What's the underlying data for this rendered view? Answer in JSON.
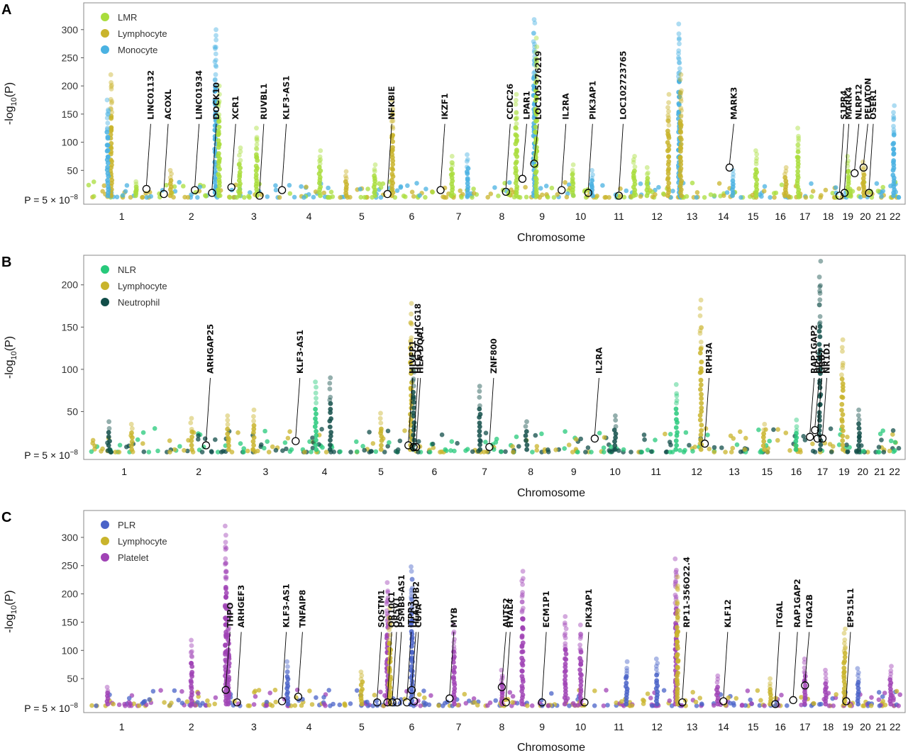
{
  "chart_data": [
    {
      "type": "scatter",
      "panel": "A",
      "ylabel_prefix": "-log",
      "ylabel_sub": "10",
      "ylabel_suffix": "(P)",
      "xlabel": "Chromosome",
      "threshold_label": "P = 5 × 10",
      "threshold_exp": "−8",
      "ylim": [
        0,
        340
      ],
      "yticks": [
        50,
        100,
        150,
        200,
        250,
        300
      ],
      "chromosomes": [
        "1",
        "2",
        "3",
        "4",
        "5",
        "6",
        "7",
        "8",
        "9",
        "10",
        "11",
        "12",
        "13",
        "14",
        "15",
        "16",
        "17",
        "18",
        "19",
        "20",
        "21",
        "22"
      ],
      "series": [
        {
          "name": "LMR",
          "color": "#a9dd3c"
        },
        {
          "name": "Lymphocyte",
          "color": "#c9b42c"
        },
        {
          "name": "Monocyte",
          "color": "#4ab2e2"
        }
      ],
      "peaks": [
        {
          "chr": "1",
          "pos": 0.35,
          "value": 220,
          "series": 1
        },
        {
          "chr": "1",
          "pos": 0.3,
          "value": 175,
          "series": 2
        },
        {
          "chr": "1",
          "pos": 0.7,
          "value": 30,
          "series": 0
        },
        {
          "chr": "2",
          "pos": 0.2,
          "value": 50,
          "series": 1
        },
        {
          "chr": "2",
          "pos": 0.85,
          "value": 300,
          "series": 2
        },
        {
          "chr": "2",
          "pos": 0.9,
          "value": 200,
          "series": 0
        },
        {
          "chr": "3",
          "pos": 0.25,
          "value": 90,
          "series": 0
        },
        {
          "chr": "3",
          "pos": 0.55,
          "value": 125,
          "series": 0
        },
        {
          "chr": "4",
          "pos": 0.7,
          "value": 85,
          "series": 0
        },
        {
          "chr": "5",
          "pos": 0.2,
          "value": 48,
          "series": 1
        },
        {
          "chr": "5",
          "pos": 0.75,
          "value": 60,
          "series": 0
        },
        {
          "chr": "6",
          "pos": 0.1,
          "value": 175,
          "series": 1
        },
        {
          "chr": "7",
          "pos": 0.35,
          "value": 75,
          "series": 0
        },
        {
          "chr": "7",
          "pos": 0.7,
          "value": 78,
          "series": 2
        },
        {
          "chr": "8",
          "pos": 0.85,
          "value": 185,
          "series": 0
        },
        {
          "chr": "9",
          "pos": 0.3,
          "value": 318,
          "series": 2
        },
        {
          "chr": "9",
          "pos": 0.35,
          "value": 285,
          "series": 0
        },
        {
          "chr": "10",
          "pos": 0.3,
          "value": 60,
          "series": 0
        },
        {
          "chr": "10",
          "pos": 0.8,
          "value": 50,
          "series": 2
        },
        {
          "chr": "11",
          "pos": 0.9,
          "value": 75,
          "series": 0
        },
        {
          "chr": "12",
          "pos": 0.25,
          "value": 55,
          "series": 0
        },
        {
          "chr": "12",
          "pos": 0.8,
          "value": 185,
          "series": 1
        },
        {
          "chr": "13",
          "pos": 0.1,
          "value": 310,
          "series": 2
        },
        {
          "chr": "13",
          "pos": 0.15,
          "value": 220,
          "series": 1
        },
        {
          "chr": "14",
          "pos": 0.8,
          "value": 50,
          "series": 2
        },
        {
          "chr": "15",
          "pos": 0.6,
          "value": 85,
          "series": 0
        },
        {
          "chr": "16",
          "pos": 0.7,
          "value": 55,
          "series": 1
        },
        {
          "chr": "17",
          "pos": 0.2,
          "value": 125,
          "series": 0
        },
        {
          "chr": "19",
          "pos": 0.5,
          "value": 75,
          "series": 0
        },
        {
          "chr": "20",
          "pos": 0.4,
          "value": 65,
          "series": 1
        },
        {
          "chr": "22",
          "pos": 0.4,
          "value": 165,
          "series": 2
        }
      ],
      "genes": [
        {
          "label": "LINC01132",
          "chr": "1",
          "pos": 0.85,
          "hit": 17
        },
        {
          "label": "ACOXL",
          "chr": "2",
          "pos": 0.1,
          "hit": 8
        },
        {
          "label": "LINC01934",
          "chr": "2",
          "pos": 0.55,
          "hit": 15
        },
        {
          "label": "DOCK10",
          "chr": "2",
          "pos": 0.8,
          "hit": 10
        },
        {
          "label": "XCR1",
          "chr": "3",
          "pos": 0.1,
          "hit": 20
        },
        {
          "label": "RUVBL1",
          "chr": "3",
          "pos": 0.6,
          "hit": 5
        },
        {
          "label": "KLF3-AS1",
          "chr": "4",
          "pos": 0.0,
          "hit": 15
        },
        {
          "label": "NFKBIE",
          "chr": "6",
          "pos": 0.0,
          "hit": 8
        },
        {
          "label": "IKZF1",
          "chr": "7",
          "pos": 0.1,
          "hit": 15
        },
        {
          "label": "CCDC26",
          "chr": "8",
          "pos": 0.6,
          "hit": 12
        },
        {
          "label": "LPAR1",
          "chr": "9",
          "pos": 0.0,
          "hit": 35
        },
        {
          "label": "LOC105376219",
          "chr": "9",
          "pos": 0.3,
          "hit": 62
        },
        {
          "label": "IL2RA",
          "chr": "10",
          "pos": 0.0,
          "hit": 15
        },
        {
          "label": "PIK3AP1",
          "chr": "10",
          "pos": 0.7,
          "hit": 10
        },
        {
          "label": "LOC102723765",
          "chr": "11",
          "pos": 0.5,
          "hit": 5
        },
        {
          "label": "MARK3",
          "chr": "14",
          "pos": 0.7,
          "hit": 55
        },
        {
          "label": "S1PR4",
          "chr": "19",
          "pos": 0.0,
          "hit": 5
        },
        {
          "label": "MARK4",
          "chr": "19",
          "pos": 0.3,
          "hit": 10
        },
        {
          "label": "NLRP12",
          "chr": "19",
          "pos": 0.9,
          "hit": 45
        },
        {
          "label": "PELATON",
          "chr": "20",
          "pos": 0.4,
          "hit": 55
        },
        {
          "label": "OSER1",
          "chr": "20",
          "pos": 0.7,
          "hit": 10
        }
      ]
    },
    {
      "type": "scatter",
      "panel": "B",
      "ylabel_prefix": "-log",
      "ylabel_sub": "10",
      "ylabel_suffix": "(P)",
      "xlabel": "Chromosome",
      "threshold_label": "P = 5 × 10",
      "threshold_exp": "−8",
      "ylim": [
        0,
        230
      ],
      "yticks": [
        50,
        100,
        150,
        200
      ],
      "chromosomes": [
        "1",
        "2",
        "3",
        "4",
        "5",
        "6",
        "7",
        "8",
        "9",
        "10",
        "11",
        "12",
        "13",
        "15",
        "16",
        "17",
        "19",
        "20",
        "21",
        "22"
      ],
      "series": [
        {
          "name": "NLR",
          "color": "#27c97b"
        },
        {
          "name": "Lymphocyte",
          "color": "#c9b42c"
        },
        {
          "name": "Neutrophil",
          "color": "#124e49"
        }
      ],
      "peaks": [
        {
          "chr": "1",
          "pos": 0.3,
          "value": 38,
          "series": 2
        },
        {
          "chr": "1",
          "pos": 0.6,
          "value": 35,
          "series": 1
        },
        {
          "chr": "2",
          "pos": 0.4,
          "value": 42,
          "series": 1
        },
        {
          "chr": "2",
          "pos": 0.9,
          "value": 45,
          "series": 1
        },
        {
          "chr": "3",
          "pos": 0.3,
          "value": 52,
          "series": 1
        },
        {
          "chr": "4",
          "pos": 0.35,
          "value": 85,
          "series": 0
        },
        {
          "chr": "4",
          "pos": 0.6,
          "value": 90,
          "series": 2
        },
        {
          "chr": "5",
          "pos": 0.5,
          "value": 48,
          "series": 1
        },
        {
          "chr": "6",
          "pos": 0.05,
          "value": 178,
          "series": 1
        },
        {
          "chr": "6",
          "pos": 0.1,
          "value": 115,
          "series": 2
        },
        {
          "chr": "7",
          "pos": 0.4,
          "value": 80,
          "series": 2
        },
        {
          "chr": "8",
          "pos": 0.4,
          "value": 38,
          "series": 2
        },
        {
          "chr": "10",
          "pos": 0.5,
          "value": 45,
          "series": 2
        },
        {
          "chr": "12",
          "pos": 0.0,
          "value": 82,
          "series": 0
        },
        {
          "chr": "12",
          "pos": 0.6,
          "value": 182,
          "series": 1
        },
        {
          "chr": "15",
          "pos": 0.4,
          "value": 35,
          "series": 1
        },
        {
          "chr": "16",
          "pos": 0.5,
          "value": 40,
          "series": 0
        },
        {
          "chr": "17",
          "pos": 0.4,
          "value": 228,
          "series": 2
        },
        {
          "chr": "19",
          "pos": 0.4,
          "value": 135,
          "series": 1
        },
        {
          "chr": "20",
          "pos": 0.3,
          "value": 52,
          "series": 2
        }
      ],
      "genes": [
        {
          "label": "ARHGAP25",
          "chr": "2",
          "pos": 0.6,
          "hit": 10
        },
        {
          "label": "KLF3-AS1",
          "chr": "4",
          "pos": 0.0,
          "hit": 15
        },
        {
          "label": "HIVEP1",
          "chr": "6",
          "pos": 0.0,
          "hit": 10
        },
        {
          "label": "HCG17 | HCG18",
          "chr": "6",
          "pos": 0.1,
          "hit": 8
        },
        {
          "label": "HLA-DQA1",
          "chr": "6",
          "pos": 0.15,
          "hit": 8
        },
        {
          "label": "ZNF800",
          "chr": "7",
          "pos": 0.6,
          "hit": 8
        },
        {
          "label": "IL2RA",
          "chr": "10",
          "pos": 0.0,
          "hit": 18
        },
        {
          "label": "RPH3A",
          "chr": "12",
          "pos": 0.7,
          "hit": 12
        },
        {
          "label": "RAP1GAP2",
          "chr": "17",
          "pos": 0.0,
          "hit": 20
        },
        {
          "label": "GRB7",
          "chr": "17",
          "pos": 0.3,
          "hit": 18
        },
        {
          "label": "PIGL",
          "chr": "17",
          "pos": 0.2,
          "hit": 28
        },
        {
          "label": "NR1D1",
          "chr": "17",
          "pos": 0.5,
          "hit": 18
        }
      ]
    },
    {
      "type": "scatter",
      "panel": "C",
      "ylabel_prefix": "-log",
      "ylabel_sub": "10",
      "ylabel_suffix": "(P)",
      "xlabel": "Chromosome",
      "threshold_label": "P = 5 × 10",
      "threshold_exp": "−8",
      "ylim": [
        0,
        340
      ],
      "yticks": [
        50,
        100,
        150,
        200,
        250,
        300
      ],
      "chromosomes": [
        "1",
        "2",
        "3",
        "4",
        "5",
        "6",
        "7",
        "8",
        "9",
        "10",
        "11",
        "12",
        "13",
        "14",
        "15",
        "16",
        "17",
        "18",
        "19",
        "20",
        "21",
        "22"
      ],
      "series": [
        {
          "name": "PLR",
          "color": "#4a63c8"
        },
        {
          "name": "Lymphocyte",
          "color": "#c9b42c"
        },
        {
          "name": "Platelet",
          "color": "#a043b5"
        }
      ],
      "peaks": [
        {
          "chr": "1",
          "pos": 0.3,
          "value": 35,
          "series": 2
        },
        {
          "chr": "2",
          "pos": 0.5,
          "value": 118,
          "series": 2
        },
        {
          "chr": "3",
          "pos": 0.0,
          "value": 320,
          "series": 2
        },
        {
          "chr": "3",
          "pos": 0.05,
          "value": 180,
          "series": 2
        },
        {
          "chr": "4",
          "pos": 0.1,
          "value": 80,
          "series": 0
        },
        {
          "chr": "5",
          "pos": 0.5,
          "value": 62,
          "series": 1
        },
        {
          "chr": "6",
          "pos": 0.0,
          "value": 220,
          "series": 2
        },
        {
          "chr": "6",
          "pos": 0.05,
          "value": 175,
          "series": 1
        },
        {
          "chr": "6",
          "pos": 0.5,
          "value": 248,
          "series": 0
        },
        {
          "chr": "7",
          "pos": 0.4,
          "value": 145,
          "series": 2
        },
        {
          "chr": "8",
          "pos": 0.5,
          "value": 65,
          "series": 2
        },
        {
          "chr": "9",
          "pos": 0.0,
          "value": 240,
          "series": 2
        },
        {
          "chr": "10",
          "pos": 0.1,
          "value": 160,
          "series": 2
        },
        {
          "chr": "10",
          "pos": 0.5,
          "value": 145,
          "series": 2
        },
        {
          "chr": "11",
          "pos": 0.7,
          "value": 80,
          "series": 0
        },
        {
          "chr": "12",
          "pos": 0.5,
          "value": 85,
          "series": 0
        },
        {
          "chr": "13",
          "pos": 0.0,
          "value": 262,
          "series": 2
        },
        {
          "chr": "13",
          "pos": 0.05,
          "value": 230,
          "series": 1
        },
        {
          "chr": "14",
          "pos": 0.3,
          "value": 55,
          "series": 2
        },
        {
          "chr": "16",
          "pos": 0.1,
          "value": 50,
          "series": 1
        },
        {
          "chr": "17",
          "pos": 0.5,
          "value": 85,
          "series": 2
        },
        {
          "chr": "18",
          "pos": 0.4,
          "value": 65,
          "series": 2
        },
        {
          "chr": "19",
          "pos": 0.3,
          "value": 138,
          "series": 1
        },
        {
          "chr": "20",
          "pos": 0.1,
          "value": 68,
          "series": 0
        },
        {
          "chr": "22",
          "pos": 0.2,
          "value": 72,
          "series": 2
        }
      ],
      "genes": [
        {
          "label": "ARHGEF3",
          "chr": "3",
          "pos": 0.2,
          "hit": 8
        },
        {
          "label": "THPO",
          "chr": "3",
          "pos": 0.0,
          "hit": 30
        },
        {
          "label": "KLF3-AS1",
          "chr": "4",
          "pos": 0.0,
          "hit": 10
        },
        {
          "label": "TNFAIP8",
          "chr": "4",
          "pos": 0.3,
          "hit": 18
        },
        {
          "label": "SQSTM1",
          "chr": "5",
          "pos": 0.8,
          "hit": 8
        },
        {
          "label": "OR10C1",
          "chr": "6",
          "pos": 0.0,
          "hit": 8
        },
        {
          "label": "OR5V1",
          "chr": "6",
          "pos": 0.1,
          "hit": 8
        },
        {
          "label": "PSMB8-AS1",
          "chr": "6",
          "pos": 0.2,
          "hit": 8
        },
        {
          "label": "ITPR3",
          "chr": "6",
          "pos": 0.4,
          "hit": 8
        },
        {
          "label": "HLA-DPB2",
          "chr": "6",
          "pos": 0.5,
          "hit": 30
        },
        {
          "label": "CUTA",
          "chr": "6",
          "pos": 0.55,
          "hit": 10
        },
        {
          "label": "MYB",
          "chr": "7",
          "pos": 0.3,
          "hit": 15
        },
        {
          "label": "AUTS2",
          "chr": "8",
          "pos": 0.5,
          "hit": 35
        },
        {
          "label": "HYAL4",
          "chr": "8",
          "pos": 0.6,
          "hit": 8
        },
        {
          "label": "ECM1P1",
          "chr": "9",
          "pos": 0.5,
          "hit": 8
        },
        {
          "label": "PIK3AP1",
          "chr": "10",
          "pos": 0.6,
          "hit": 8
        },
        {
          "label": "RP11-356O22.4",
          "chr": "13",
          "pos": 0.2,
          "hit": 8
        },
        {
          "label": "KLF12",
          "chr": "14",
          "pos": 0.5,
          "hit": 10
        },
        {
          "label": "ITGAL",
          "chr": "16",
          "pos": 0.3,
          "hit": 5
        },
        {
          "label": "RAP1GAP2",
          "chr": "17",
          "pos": 0.0,
          "hit": 12
        },
        {
          "label": "ITGA2B",
          "chr": "17",
          "pos": 0.5,
          "hit": 38
        },
        {
          "label": "EPS15L1",
          "chr": "19",
          "pos": 0.4,
          "hit": 10
        }
      ]
    }
  ]
}
